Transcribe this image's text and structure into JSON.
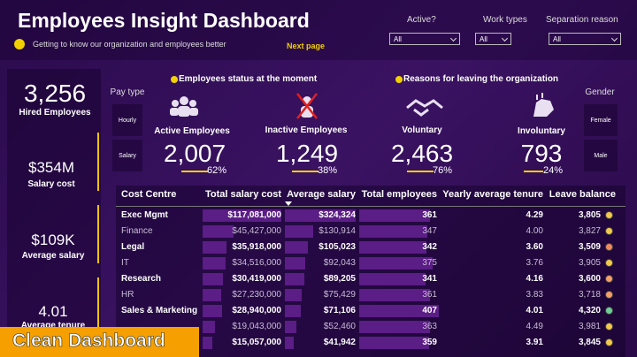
{
  "header": {
    "title": "Employees Insight Dashboard",
    "subtitle": "Getting to know our organization and employees better",
    "next_page": "Next page"
  },
  "filters": [
    {
      "label": "Active?",
      "value": "All"
    },
    {
      "label": "Work types",
      "value": "All"
    },
    {
      "label": "Separation reason",
      "value": "All"
    }
  ],
  "kpis": [
    {
      "value": "3,256",
      "label": "Hired Employees"
    },
    {
      "value": "$354M",
      "label": "Salary cost"
    },
    {
      "value": "$109K",
      "label": "Average salary"
    },
    {
      "value": "4.01",
      "label": "Average tenure"
    }
  ],
  "pay_type": {
    "label": "Pay type",
    "options": [
      "Hourly",
      "Salary"
    ]
  },
  "gender": {
    "label": "Gender",
    "options": [
      "Female",
      "Male"
    ]
  },
  "status": {
    "title": "Employees status at the moment",
    "items": [
      {
        "label": "Active Employees",
        "value": "2,007",
        "share": "62%"
      },
      {
        "label": "Inactive Employees",
        "value": "1,249",
        "share": "38%"
      }
    ]
  },
  "reasons": {
    "title": "Reasons for leaving the organization",
    "items": [
      {
        "label": "Voluntary",
        "value": "2,463",
        "share": "76%"
      },
      {
        "label": "Involuntary",
        "value": "793",
        "share": "24%"
      }
    ]
  },
  "table": {
    "columns": [
      "Cost Centre",
      "Total salary cost",
      "Average salary",
      "Total employees",
      "Yearly average tenure",
      "Leave balance"
    ],
    "rows": [
      [
        "Exec Mgmt",
        "$117,081,000",
        "$324,324",
        "361",
        "4.29",
        "3,805"
      ],
      [
        "Finance",
        "$45,427,000",
        "$130,914",
        "347",
        "4.00",
        "3,827"
      ],
      [
        "Legal",
        "$35,918,000",
        "$105,023",
        "342",
        "3.60",
        "3,509"
      ],
      [
        "IT",
        "$34,516,000",
        "$92,043",
        "375",
        "3.76",
        "3,905"
      ],
      [
        "Research",
        "$30,419,000",
        "$89,205",
        "341",
        "4.16",
        "3,600"
      ],
      [
        "HR",
        "$27,230,000",
        "$75,429",
        "361",
        "3.83",
        "3,718"
      ],
      [
        "Sales & Marketing",
        "$28,940,000",
        "$71,106",
        "407",
        "4.01",
        "4,320"
      ],
      [
        null,
        "$19,043,000",
        "$52,460",
        "363",
        "4.49",
        "3,981"
      ],
      [
        null,
        "$15,057,000",
        "$41,942",
        "359",
        "3.91",
        "3,845"
      ]
    ],
    "dot_colors": [
      "#f2c94c",
      "#f2c94c",
      "#f08a5d",
      "#f2c94c",
      "#f5a06a",
      "#f5a06a",
      "#6fcf97",
      "#f2c94c",
      "#f2c94c"
    ]
  },
  "banner": "Clean Dashboard"
}
